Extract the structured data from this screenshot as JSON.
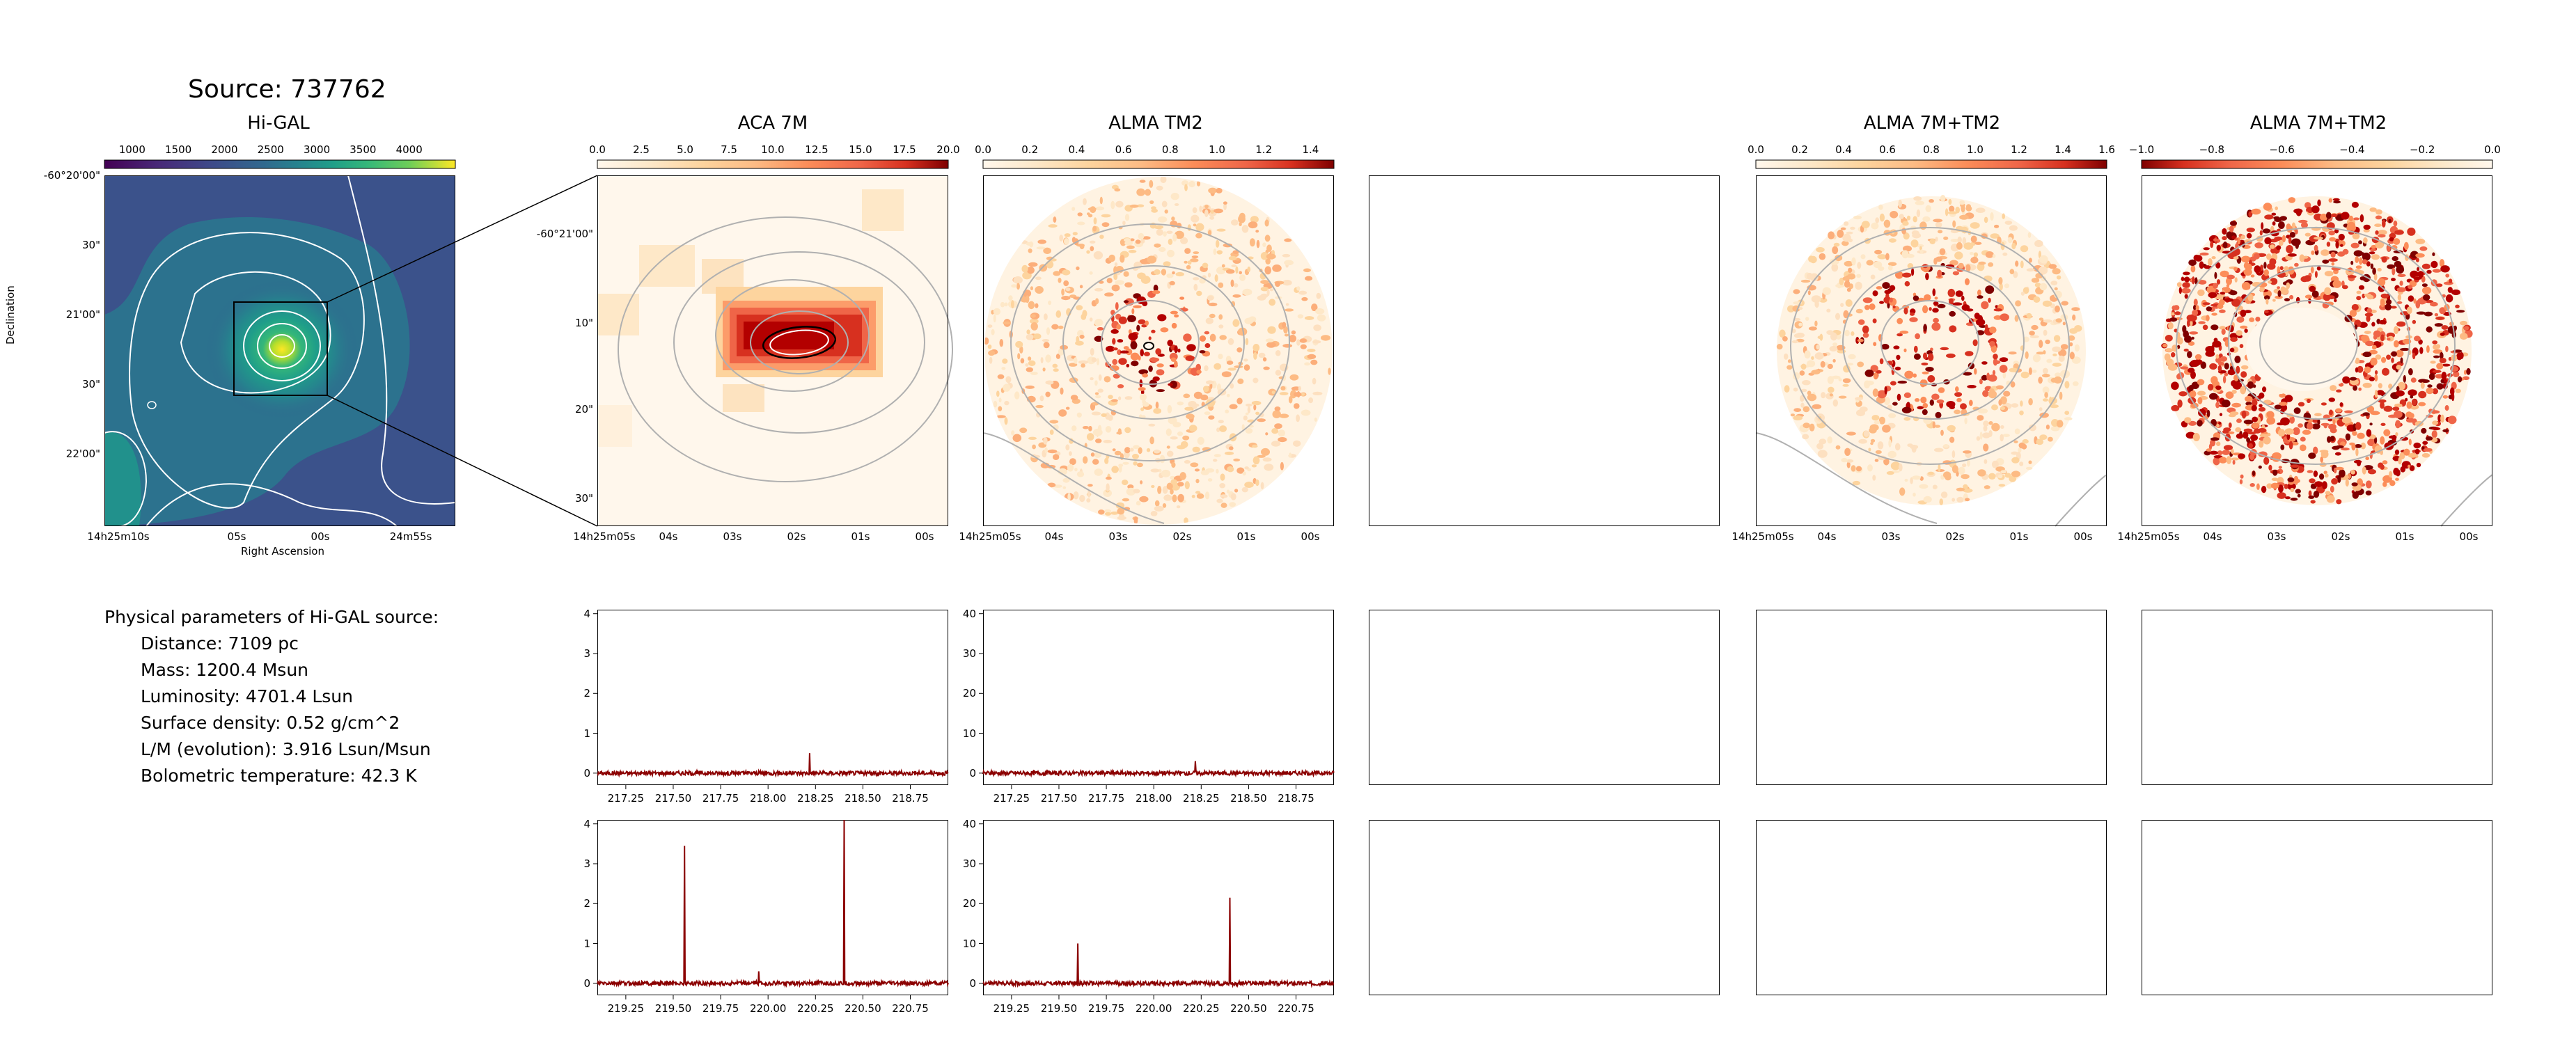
{
  "source_title": "Source: 737762",
  "panel_titles": {
    "higal": "Hi-GAL",
    "aca": "ACA 7M",
    "tm2": "ALMA TM2",
    "combo": "ALMA 7M+TM2",
    "combo_neg": "ALMA 7M+TM2"
  },
  "axis_labels": {
    "ylabel": "Declination",
    "xlabel": "Right Ascension"
  },
  "params": {
    "heading": "Physical parameters of Hi-GAL source:",
    "distance": "Distance: 7109 pc",
    "mass": "Mass: 1200.4 Msun",
    "luminosity": "Luminosity: 4701.4 Lsun",
    "surface_density": "Surface density: 0.52 g/cm^2",
    "lm": "L/M (evolution): 3.916 Lsun/Msun",
    "tbol": "Bolometric temperature: 42.3 K"
  },
  "colors": {
    "spectrum": "#8b0000",
    "contour_gray": "#b0b0b0",
    "contour_white": "#ffffff"
  },
  "chart_data": [
    {
      "type": "heatmap",
      "name": "Hi-GAL map",
      "colormap": "viridis",
      "colorbar_ticks": [
        "1000",
        "1500",
        "2000",
        "2500",
        "3000",
        "3500",
        "4000"
      ],
      "colorbar_range": [
        700,
        4500
      ],
      "x_ticks": [
        "14h25m10s",
        "05s",
        "00s",
        "24m55s"
      ],
      "y_ticks": [
        "-60°20'00\"",
        "30\"",
        "21'00\"",
        "30\"",
        "22'00\""
      ],
      "xlabel": "Right Ascension",
      "ylabel": "Declination"
    },
    {
      "type": "heatmap",
      "name": "ACA 7M map",
      "colormap": "OrRd",
      "colorbar_ticks": [
        "0.0",
        "2.5",
        "5.0",
        "7.5",
        "10.0",
        "12.5",
        "15.0",
        "17.5",
        "20.0"
      ],
      "colorbar_range": [
        0,
        20
      ],
      "x_ticks": [
        "14h25m05s",
        "04s",
        "03s",
        "02s",
        "01s",
        "00s"
      ],
      "y_ticks": [
        "-60°21'00\"",
        "10\"",
        "20\"",
        "30\""
      ]
    },
    {
      "type": "heatmap",
      "name": "ALMA TM2 map",
      "colormap": "OrRd",
      "colorbar_ticks": [
        "0.0",
        "0.2",
        "0.4",
        "0.6",
        "0.8",
        "1.0",
        "1.2",
        "1.4"
      ],
      "colorbar_range": [
        0,
        1.5
      ],
      "x_ticks": [
        "14h25m05s",
        "04s",
        "03s",
        "02s",
        "01s",
        "00s"
      ]
    },
    {
      "type": "heatmap",
      "name": "ALMA 7M+TM2 map",
      "colormap": "OrRd",
      "colorbar_ticks": [
        "0.0",
        "0.2",
        "0.4",
        "0.6",
        "0.8",
        "1.0",
        "1.2",
        "1.4",
        "1.6"
      ],
      "colorbar_range": [
        0,
        1.6
      ],
      "x_ticks": [
        "14h25m05s",
        "04s",
        "03s",
        "02s",
        "01s",
        "00s"
      ]
    },
    {
      "type": "heatmap",
      "name": "ALMA 7M+TM2 negative map",
      "colormap": "OrRd_r",
      "colorbar_ticks": [
        "−1.0",
        "−0.8",
        "−0.6",
        "−0.4",
        "−0.2",
        "0.0"
      ],
      "colorbar_range": [
        -1.0,
        0
      ],
      "x_ticks": [
        "14h25m05s",
        "04s",
        "03s",
        "02s",
        "01s",
        "00s"
      ]
    },
    {
      "type": "line",
      "name": "ACA spectrum SPW1",
      "x_ticks": [
        "217.25",
        "217.50",
        "217.75",
        "218.00",
        "218.25",
        "218.50",
        "218.75"
      ],
      "xlim": [
        217.1,
        218.95
      ],
      "y_ticks": [
        "0",
        "1",
        "2",
        "3",
        "4"
      ],
      "ylim": [
        -0.3,
        4.1
      ],
      "peaks": [
        {
          "x": 218.22,
          "y": 0.5
        }
      ]
    },
    {
      "type": "line",
      "name": "TM2 spectrum SPW1",
      "x_ticks": [
        "217.25",
        "217.50",
        "217.75",
        "218.00",
        "218.25",
        "218.50",
        "218.75"
      ],
      "xlim": [
        217.1,
        218.95
      ],
      "y_ticks": [
        "0",
        "10",
        "20",
        "30",
        "40"
      ],
      "ylim": [
        -3,
        41
      ],
      "peaks": [
        {
          "x": 218.22,
          "y": 3
        }
      ]
    },
    {
      "type": "line",
      "name": "ACA spectrum SPW2",
      "x_ticks": [
        "219.25",
        "219.50",
        "219.75",
        "220.00",
        "220.25",
        "220.50",
        "220.75"
      ],
      "xlim": [
        219.1,
        220.95
      ],
      "y_ticks": [
        "0",
        "1",
        "2",
        "3",
        "4"
      ],
      "ylim": [
        -0.3,
        4.1
      ],
      "peaks": [
        {
          "x": 219.56,
          "y": 3.45
        },
        {
          "x": 219.95,
          "y": 0.3
        },
        {
          "x": 220.4,
          "y": 4.1
        }
      ]
    },
    {
      "type": "line",
      "name": "TM2 spectrum SPW2",
      "x_ticks": [
        "219.25",
        "219.50",
        "219.75",
        "220.00",
        "220.25",
        "220.50",
        "220.75"
      ],
      "xlim": [
        219.1,
        220.95
      ],
      "y_ticks": [
        "0",
        "10",
        "20",
        "30",
        "40"
      ],
      "ylim": [
        -3,
        41
      ],
      "peaks": [
        {
          "x": 219.6,
          "y": 10
        },
        {
          "x": 220.4,
          "y": 21.5
        }
      ]
    }
  ]
}
